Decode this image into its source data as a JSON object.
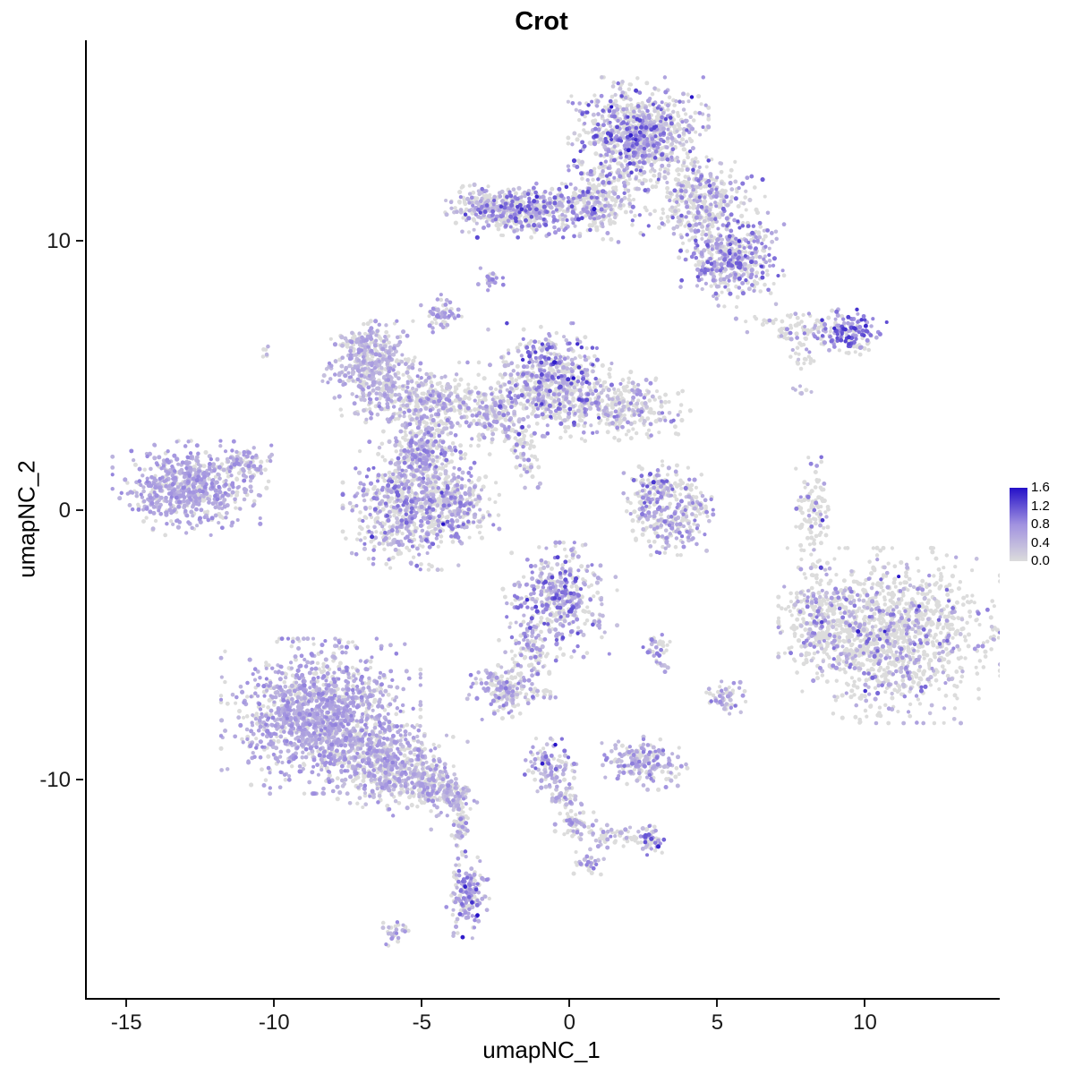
{
  "chart_data": {
    "type": "scatter",
    "title": "Crot",
    "xlabel": "umapNC_1",
    "ylabel": "umapNC_2",
    "xlim": [
      -16.4,
      14.5
    ],
    "ylim": [
      -18.1,
      17.45
    ],
    "x_ticks": [
      -15,
      -10,
      -5,
      0,
      5,
      10
    ],
    "y_ticks": [
      10,
      0,
      -10
    ],
    "grid": false,
    "point_radius": 2.2,
    "legend": {
      "position": "right",
      "min": 0,
      "max": 1.6,
      "ticks": [
        "1.6",
        "1.2",
        "0.8",
        "0.4",
        "0.0"
      ]
    },
    "colors": {
      "low": "#DCDCDC",
      "mid": "#A192E0",
      "high": "#2410C8"
    },
    "clusters": [
      {
        "name": "top-main",
        "cx": 2.27,
        "cy": 13.95,
        "sx": 0.95,
        "sy": 0.85,
        "rot": 0,
        "n": 900,
        "pos": 0.5,
        "lo": 0.2,
        "hi": 1.3
      },
      {
        "name": "top-right-wing",
        "cx": 4.39,
        "cy": 11.3,
        "sx": 0.8,
        "sy": 0.8,
        "rot": -35,
        "n": 400,
        "pos": 0.45,
        "lo": 0.2,
        "hi": 1.2
      },
      {
        "name": "top-right-lower",
        "cx": 5.45,
        "cy": 9.3,
        "sx": 0.7,
        "sy": 0.7,
        "rot": 0,
        "n": 420,
        "pos": 0.6,
        "lo": 0.3,
        "hi": 1.2
      },
      {
        "name": "top-left-band",
        "cx": -1.52,
        "cy": 11.13,
        "sx": 1.1,
        "sy": 0.4,
        "rot": 0,
        "n": 480,
        "pos": 0.55,
        "lo": 0.3,
        "hi": 1.3
      },
      {
        "name": "top-left-band-tip",
        "cx": -3.18,
        "cy": 11.3,
        "sx": 0.35,
        "sy": 0.35,
        "rot": 0,
        "n": 80,
        "pos": 0.5,
        "lo": 0.3,
        "hi": 1.0
      },
      {
        "name": "top-connector",
        "cx": 1.0,
        "cy": 11.46,
        "sx": 0.6,
        "sy": 0.6,
        "rot": 0,
        "n": 220,
        "pos": 0.35,
        "lo": 0.2,
        "hi": 1.1
      },
      {
        "name": "dot-upper-mid",
        "cx": -2.73,
        "cy": 8.54,
        "sx": 0.18,
        "sy": 0.18,
        "rot": 0,
        "n": 22,
        "pos": 0.85,
        "lo": 0.5,
        "hi": 1.0
      },
      {
        "name": "small-upper-left",
        "cx": -4.39,
        "cy": 7.31,
        "sx": 0.28,
        "sy": 0.28,
        "rot": 0,
        "n": 55,
        "pos": 0.7,
        "lo": 0.4,
        "hi": 0.9
      },
      {
        "name": "right-strip",
        "cx": 8.03,
        "cy": 6.64,
        "sx": 1.0,
        "sy": 0.3,
        "rot": -10,
        "n": 130,
        "pos": 0.35,
        "lo": 0.3,
        "hi": 1.0
      },
      {
        "name": "right-strip-end",
        "cx": 9.55,
        "cy": 6.58,
        "sx": 0.45,
        "sy": 0.35,
        "rot": 0,
        "n": 110,
        "pos": 0.8,
        "lo": 0.5,
        "hi": 1.4
      },
      {
        "name": "right-strip-dot",
        "cx": 7.88,
        "cy": 5.65,
        "sx": 0.2,
        "sy": 0.2,
        "rot": 0,
        "n": 18,
        "pos": 0.15,
        "lo": 0.3,
        "hi": 0.8
      },
      {
        "name": "right-strip-dot2",
        "cx": 7.82,
        "cy": 4.42,
        "sx": 0.15,
        "sy": 0.15,
        "rot": 0,
        "n": 8,
        "pos": 0.2,
        "lo": 0.3,
        "hi": 0.8
      },
      {
        "name": "mid-left-lobe",
        "cx": -6.67,
        "cy": 5.15,
        "sx": 0.7,
        "sy": 0.75,
        "rot": 0,
        "n": 380,
        "pos": 0.6,
        "lo": 0.3,
        "hi": 0.8
      },
      {
        "name": "mid-left-lobe-tip",
        "cx": -6.97,
        "cy": 5.98,
        "sx": 0.4,
        "sy": 0.4,
        "rot": 0,
        "n": 110,
        "pos": 0.6,
        "lo": 0.3,
        "hi": 0.8
      },
      {
        "name": "mid-center-top",
        "cx": -0.76,
        "cy": 4.82,
        "sx": 0.85,
        "sy": 0.85,
        "rot": 0,
        "n": 600,
        "pos": 0.5,
        "lo": 0.3,
        "hi": 1.3
      },
      {
        "name": "mid-right-arm",
        "cx": 1.52,
        "cy": 3.82,
        "sx": 1.0,
        "sy": 0.55,
        "rot": -8,
        "n": 320,
        "pos": 0.4,
        "lo": 0.2,
        "hi": 1.0
      },
      {
        "name": "mid-bridge",
        "cx": -4.7,
        "cy": 3.99,
        "sx": 0.85,
        "sy": 0.6,
        "rot": 0,
        "n": 320,
        "pos": 0.45,
        "lo": 0.3,
        "hi": 0.9
      },
      {
        "name": "mid-bridge2",
        "cx": -2.73,
        "cy": 3.65,
        "sx": 0.5,
        "sy": 0.5,
        "rot": 0,
        "n": 150,
        "pos": 0.45,
        "lo": 0.3,
        "hi": 0.9
      },
      {
        "name": "mid-node",
        "cx": -5.0,
        "cy": 2.16,
        "sx": 0.5,
        "sy": 0.5,
        "rot": 0,
        "n": 220,
        "pos": 0.5,
        "lo": 0.3,
        "hi": 1.0
      },
      {
        "name": "mid-lower",
        "cx": -5.61,
        "cy": 0.17,
        "sx": 0.85,
        "sy": 0.95,
        "rot": 0,
        "n": 600,
        "pos": 0.55,
        "lo": 0.3,
        "hi": 1.1
      },
      {
        "name": "mid-lower-right",
        "cx": -3.94,
        "cy": 0.33,
        "sx": 0.6,
        "sy": 0.7,
        "rot": 0,
        "n": 280,
        "pos": 0.45,
        "lo": 0.3,
        "hi": 1.0
      },
      {
        "name": "mid-strand",
        "cx": -1.67,
        "cy": 2.16,
        "sx": 0.25,
        "sy": 0.7,
        "rot": 20,
        "n": 70,
        "pos": 0.4,
        "lo": 0.3,
        "hi": 0.9
      },
      {
        "name": "far-left",
        "cx": -13.03,
        "cy": 0.83,
        "sx": 1.0,
        "sy": 0.7,
        "rot": 0,
        "n": 620,
        "pos": 0.75,
        "lo": 0.4,
        "hi": 0.9
      },
      {
        "name": "far-left-tip",
        "cx": -11.06,
        "cy": 1.66,
        "sx": 0.4,
        "sy": 0.35,
        "rot": 0,
        "n": 90,
        "pos": 0.65,
        "lo": 0.3,
        "hi": 0.85
      },
      {
        "name": "center-small-upper",
        "cx": 3.03,
        "cy": 0.66,
        "sx": 0.55,
        "sy": 0.5,
        "rot": 0,
        "n": 180,
        "pos": 0.45,
        "lo": 0.3,
        "hi": 1.2
      },
      {
        "name": "center-small-lower",
        "cx": 3.33,
        "cy": -0.66,
        "sx": 0.5,
        "sy": 0.4,
        "rot": 0,
        "n": 140,
        "pos": 0.5,
        "lo": 0.3,
        "hi": 1.0
      },
      {
        "name": "center-small-right",
        "cx": 4.24,
        "cy": 0.17,
        "sx": 0.3,
        "sy": 0.3,
        "rot": 0,
        "n": 50,
        "pos": 0.4,
        "lo": 0.3,
        "hi": 0.9
      },
      {
        "name": "vertical-strip",
        "cx": 8.18,
        "cy": 0.0,
        "sx": 0.3,
        "sy": 0.85,
        "rot": 0,
        "n": 110,
        "pos": 0.15,
        "lo": 0.4,
        "hi": 1.4
      },
      {
        "name": "right-large",
        "cx": 10.76,
        "cy": -4.65,
        "sx": 1.5,
        "sy": 1.3,
        "rot": 0,
        "n": 1300,
        "pos": 0.25,
        "lo": 0.3,
        "hi": 1.1
      },
      {
        "name": "right-large-west",
        "cx": 8.33,
        "cy": -3.99,
        "sx": 0.5,
        "sy": 0.8,
        "rot": 0,
        "n": 180,
        "pos": 0.3,
        "lo": 0.3,
        "hi": 1.0
      },
      {
        "name": "right-sparse-top",
        "cx": 8.18,
        "cy": -2.33,
        "sx": 0.3,
        "sy": 0.3,
        "rot": 0,
        "n": 10,
        "pos": 0.1,
        "lo": 0.3,
        "hi": 0.6
      },
      {
        "name": "center-mid",
        "cx": -0.45,
        "cy": -3.32,
        "sx": 0.8,
        "sy": 0.85,
        "rot": 0,
        "n": 420,
        "pos": 0.6,
        "lo": 0.3,
        "hi": 1.3
      },
      {
        "name": "center-mid-tail",
        "cx": -1.36,
        "cy": -5.32,
        "sx": 0.35,
        "sy": 0.5,
        "rot": 0,
        "n": 90,
        "pos": 0.5,
        "lo": 0.3,
        "hi": 1.0
      },
      {
        "name": "small-blob-left",
        "cx": -2.27,
        "cy": -6.64,
        "sx": 0.5,
        "sy": 0.45,
        "rot": 0,
        "n": 160,
        "pos": 0.6,
        "lo": 0.3,
        "hi": 1.0
      },
      {
        "name": "small-dot1",
        "cx": -0.91,
        "cy": -6.81,
        "sx": 0.15,
        "sy": 0.15,
        "rot": 0,
        "n": 14,
        "pos": 0.5,
        "lo": 0.3,
        "hi": 0.8
      },
      {
        "name": "small-dot2",
        "cx": 2.88,
        "cy": -5.08,
        "sx": 0.22,
        "sy": 0.22,
        "rot": 0,
        "n": 30,
        "pos": 0.7,
        "lo": 0.3,
        "hi": 1.0
      },
      {
        "name": "small-dot3",
        "cx": 3.09,
        "cy": -5.81,
        "sx": 0.12,
        "sy": 0.12,
        "rot": 0,
        "n": 10,
        "pos": 0.5,
        "lo": 0.3,
        "hi": 0.8
      },
      {
        "name": "small-blob-right",
        "cx": 5.15,
        "cy": -6.91,
        "sx": 0.3,
        "sy": 0.3,
        "rot": 0,
        "n": 55,
        "pos": 0.5,
        "lo": 0.3,
        "hi": 1.0
      },
      {
        "name": "bottom-left-main",
        "cx": -8.48,
        "cy": -7.64,
        "sx": 1.35,
        "sy": 1.15,
        "rot": 0,
        "n": 1400,
        "pos": 0.7,
        "lo": 0.4,
        "hi": 0.9
      },
      {
        "name": "bottom-left-east",
        "cx": -6.21,
        "cy": -9.47,
        "sx": 0.9,
        "sy": 0.7,
        "rot": -20,
        "n": 500,
        "pos": 0.6,
        "lo": 0.3,
        "hi": 0.85
      },
      {
        "name": "bottom-left-tail",
        "cx": -4.7,
        "cy": -10.13,
        "sx": 0.5,
        "sy": 0.4,
        "rot": -25,
        "n": 180,
        "pos": 0.5,
        "lo": 0.3,
        "hi": 0.85
      },
      {
        "name": "bottom-left-tail-tip",
        "cx": -3.94,
        "cy": -10.63,
        "sx": 0.3,
        "sy": 0.3,
        "rot": 0,
        "n": 80,
        "pos": 0.45,
        "lo": 0.3,
        "hi": 0.85
      },
      {
        "name": "bottom-strand",
        "cx": -3.73,
        "cy": -11.79,
        "sx": 0.15,
        "sy": 0.5,
        "rot": 0,
        "n": 55,
        "pos": 0.5,
        "lo": 0.3,
        "hi": 0.9
      },
      {
        "name": "bottom-blob",
        "cx": -3.48,
        "cy": -14.29,
        "sx": 0.3,
        "sy": 0.65,
        "rot": 0,
        "n": 150,
        "pos": 0.7,
        "lo": 0.4,
        "hi": 1.1
      },
      {
        "name": "bottom-dot",
        "cx": -6.03,
        "cy": -15.61,
        "sx": 0.22,
        "sy": 0.22,
        "rot": 0,
        "n": 28,
        "pos": 0.6,
        "lo": 0.3,
        "hi": 0.9
      },
      {
        "name": "stem-top",
        "cx": -0.7,
        "cy": -9.47,
        "sx": 0.35,
        "sy": 0.4,
        "rot": 0,
        "n": 100,
        "pos": 0.6,
        "lo": 0.3,
        "hi": 1.1
      },
      {
        "name": "stem-mid",
        "cx": -0.3,
        "cy": -10.63,
        "sx": 0.25,
        "sy": 0.25,
        "rot": 0,
        "n": 45,
        "pos": 0.5,
        "lo": 0.3,
        "hi": 0.9
      },
      {
        "name": "stem-low",
        "cx": 0.15,
        "cy": -11.56,
        "sx": 0.28,
        "sy": 0.28,
        "rot": 0,
        "n": 55,
        "pos": 0.5,
        "lo": 0.3,
        "hi": 0.9
      },
      {
        "name": "stem-branch",
        "cx": 1.52,
        "cy": -12.13,
        "sx": 0.5,
        "sy": 0.2,
        "rot": 0,
        "n": 55,
        "pos": 0.45,
        "lo": 0.3,
        "hi": 0.9
      },
      {
        "name": "stem-branch-end",
        "cx": 2.64,
        "cy": -12.29,
        "sx": 0.25,
        "sy": 0.25,
        "rot": 0,
        "n": 45,
        "pos": 0.6,
        "lo": 0.3,
        "hi": 1.3
      },
      {
        "name": "small-cluster-bottom",
        "cx": 2.42,
        "cy": -9.37,
        "sx": 0.65,
        "sy": 0.4,
        "rot": 0,
        "n": 190,
        "pos": 0.6,
        "lo": 0.3,
        "hi": 1.0
      },
      {
        "name": "tiny-bottom",
        "cx": 0.55,
        "cy": -13.06,
        "sx": 0.22,
        "sy": 0.22,
        "rot": 0,
        "n": 30,
        "pos": 0.5,
        "lo": 0.3,
        "hi": 1.0
      },
      {
        "name": "tiny-upper-left-pair",
        "cx": -10.39,
        "cy": 5.91,
        "sx": 0.12,
        "sy": 0.12,
        "rot": 0,
        "n": 6,
        "pos": 0.3,
        "lo": 0.3,
        "hi": 0.6
      }
    ]
  }
}
